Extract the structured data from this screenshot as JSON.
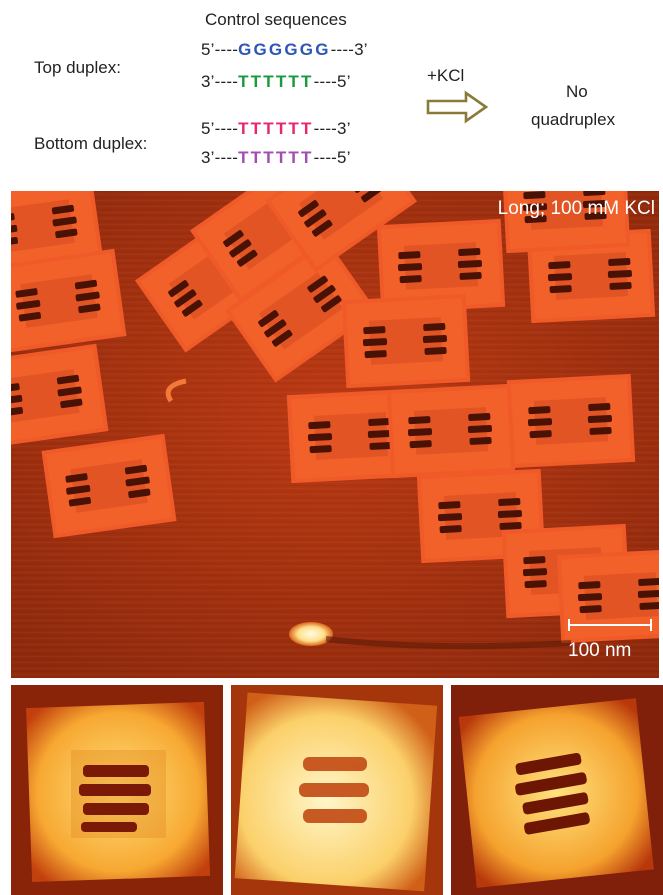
{
  "header": {
    "title": "Control sequences"
  },
  "top_duplex": {
    "label": "Top duplex:",
    "strand1": {
      "prefix": "5’----",
      "core": "GGGGGG",
      "suffix": "----3’",
      "core_color": "#2e57b4"
    },
    "strand2": {
      "prefix": "3’----",
      "core": "TTTTTT",
      "suffix": "----5’",
      "core_color": "#1a9a3e"
    }
  },
  "bottom_duplex": {
    "label": "Bottom duplex:",
    "strand1": {
      "prefix": "5’----",
      "core": "TTTTTT",
      "suffix": "----3’",
      "core_color": "#e8256f"
    },
    "strand2": {
      "prefix": "3’----",
      "core": "TTTTTT",
      "suffix": "----5’",
      "core_color": "#a24db0"
    }
  },
  "reaction": {
    "reagent": "+KCl",
    "arrow_icon": "hollow-right-arrow-icon",
    "arrow_color": "#8a7a3a"
  },
  "result": {
    "line1": "No",
    "line2": "quadruplex"
  },
  "afm_main": {
    "condition_label": "Long; 100 mM KCl",
    "scale_label": "100 nm"
  },
  "afm_zoom": {
    "count": 3
  }
}
